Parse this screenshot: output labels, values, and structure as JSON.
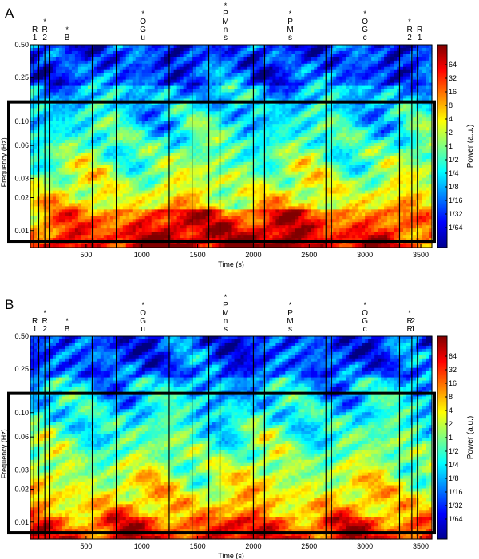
{
  "chart_data": [
    {
      "type": "heatmap",
      "panel_label": "A",
      "title": "",
      "xlabel": "Time (s)",
      "ylabel": "Frequency (Hz)",
      "xlim": [
        0,
        3600
      ],
      "ylim": [
        0.007,
        0.5
      ],
      "y_scale": "log",
      "x_ticks": [
        500,
        1000,
        1500,
        2000,
        2500,
        3000,
        3500
      ],
      "x_tick_labels": [
        "500",
        "1000",
        "1500",
        "2000",
        "2500",
        "3000",
        "3500"
      ],
      "y_ticks": [
        0.5,
        0.25,
        0.1,
        0.06,
        0.03,
        0.02,
        0.01
      ],
      "y_tick_labels": [
        "0.50",
        "0.25",
        "0.10",
        "0.06",
        "0.03",
        "0.02",
        "0.01"
      ],
      "highlight_band_hz": [
        0.008,
        0.15
      ],
      "event_times_s": [
        30,
        75,
        130,
        175,
        555,
        770,
        1245,
        1450,
        1600,
        1700,
        2000,
        2100,
        2650,
        2700,
        3310,
        3420,
        3470
      ],
      "annotations": [
        {
          "x": 40,
          "marker": "",
          "label": "R1"
        },
        {
          "x": 130,
          "marker": "*",
          "label": "R2"
        },
        {
          "x": 330,
          "marker": "*",
          "label": "B"
        },
        {
          "x": 1010,
          "marker": "*",
          "label": "OGu"
        },
        {
          "x": 1750,
          "marker": "*",
          "label": "PMns"
        },
        {
          "x": 2330,
          "marker": "*",
          "label": "PMs"
        },
        {
          "x": 3000,
          "marker": "*",
          "label": "OGc"
        },
        {
          "x": 3400,
          "marker": "*",
          "label": "R2"
        },
        {
          "x": 3490,
          "marker": "",
          "label": "R1"
        }
      ],
      "colorbar": {
        "label": "Power (a.u.)",
        "ticks": [
          "64",
          "32",
          "16",
          "8",
          "4",
          "2",
          "1",
          "1/2",
          "1/4",
          "1/8",
          "1/16",
          "1/32",
          "1/64"
        ]
      }
    },
    {
      "type": "heatmap",
      "panel_label": "B",
      "title": "",
      "xlabel": "Time (s)",
      "ylabel": "Frequency (Hz)",
      "xlim": [
        0,
        3600
      ],
      "ylim": [
        0.007,
        0.5
      ],
      "y_scale": "log",
      "x_ticks": [
        500,
        1000,
        1500,
        2000,
        2500,
        3000,
        3500
      ],
      "x_tick_labels": [
        "500",
        "1000",
        "1500",
        "2000",
        "2500",
        "3000",
        "3500"
      ],
      "y_ticks": [
        0.5,
        0.25,
        0.1,
        0.06,
        0.03,
        0.02,
        0.01
      ],
      "y_tick_labels": [
        "0.50",
        "0.25",
        "0.10",
        "0.06",
        "0.03",
        "0.02",
        "0.01"
      ],
      "highlight_band_hz": [
        0.008,
        0.15
      ],
      "event_times_s": [
        30,
        75,
        130,
        175,
        555,
        770,
        1245,
        1450,
        1600,
        1700,
        2000,
        2100,
        2650,
        2700,
        3310,
        3420,
        3470
      ],
      "annotations": [
        {
          "x": 40,
          "marker": "",
          "label": "R1"
        },
        {
          "x": 130,
          "marker": "*",
          "label": "R2"
        },
        {
          "x": 330,
          "marker": "*",
          "label": "B"
        },
        {
          "x": 1010,
          "marker": "*",
          "label": "OGu"
        },
        {
          "x": 1750,
          "marker": "*",
          "label": "PMns"
        },
        {
          "x": 2330,
          "marker": "*",
          "label": "PMs"
        },
        {
          "x": 3000,
          "marker": "*",
          "label": "OGc"
        },
        {
          "x": 3400,
          "marker": "*",
          "label": "RR"
        },
        {
          "x": 3430,
          "marker": "",
          "label": "21"
        }
      ],
      "colorbar": {
        "label": "Power (a.u.)",
        "ticks": [
          "64",
          "32",
          "16",
          "8",
          "4",
          "2",
          "1",
          "1/2",
          "1/4",
          "1/8",
          "1/16",
          "1/32",
          "1/64"
        ]
      }
    }
  ]
}
